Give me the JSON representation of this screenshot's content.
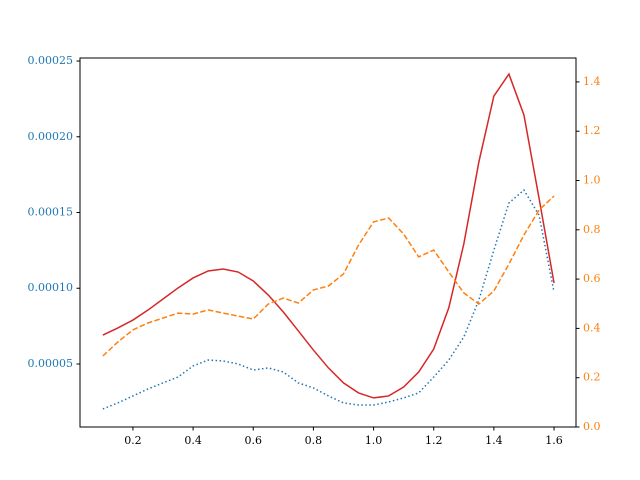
{
  "chart_data": {
    "type": "line",
    "x": [
      0.1,
      0.15,
      0.2,
      0.25,
      0.3,
      0.35,
      0.4,
      0.45,
      0.5,
      0.55,
      0.6,
      0.65,
      0.7,
      0.75,
      0.8,
      0.85,
      0.9,
      0.95,
      1.0,
      1.05,
      1.1,
      1.15,
      1.2,
      1.25,
      1.3,
      1.35,
      1.4,
      1.45,
      1.5,
      1.55,
      1.6
    ],
    "series": [
      {
        "color": "#1f77b4",
        "dash": "dotted",
        "axis": "y",
        "values": [
          2.03e-05,
          2.43e-05,
          2.89e-05,
          3.35e-05,
          3.75e-05,
          4.14e-05,
          4.87e-05,
          5.26e-05,
          5.2e-05,
          5e-05,
          4.6e-05,
          4.74e-05,
          4.47e-05,
          3.75e-05,
          3.42e-05,
          2.89e-05,
          2.43e-05,
          2.29e-05,
          2.29e-05,
          2.49e-05,
          2.76e-05,
          3.09e-05,
          4.14e-05,
          5.26e-05,
          6.78e-05,
          9.22e-05,
          0.0001252,
          0.0001563,
          0.0001648,
          0.0001483,
          9.75e-05
        ]
      },
      {
        "color": "#d62728",
        "dash": "solid",
        "axis": "y",
        "values": [
          6.91e-05,
          7.38e-05,
          7.9e-05,
          8.56e-05,
          9.29e-05,
          0.0001002,
          0.0001068,
          0.0001114,
          0.0001127,
          0.0001107,
          0.0001048,
          9.55e-05,
          8.43e-05,
          7.18e-05,
          5.92e-05,
          4.74e-05,
          3.75e-05,
          3.09e-05,
          2.76e-05,
          2.89e-05,
          3.48e-05,
          4.47e-05,
          5.99e-05,
          8.7e-05,
          0.0001292,
          0.0001833,
          0.0002269,
          0.0002414,
          0.0002143,
          0.0001596,
          0.0001035
        ]
      },
      {
        "color": "#ff7f0e",
        "dash": "dashed",
        "axis": "y2",
        "values": [
          0.288,
          0.345,
          0.394,
          0.422,
          0.442,
          0.462,
          0.458,
          0.475,
          0.462,
          0.45,
          0.438,
          0.499,
          0.523,
          0.503,
          0.556,
          0.572,
          0.621,
          0.738,
          0.832,
          0.848,
          0.783,
          0.69,
          0.718,
          0.629,
          0.544,
          0.499,
          0.552,
          0.661,
          0.779,
          0.88,
          0.937
        ]
      }
    ],
    "xlim": [
      0.024,
      1.673
    ],
    "xticks": [
      0.2,
      0.4,
      0.6,
      0.8,
      {
        "value": 1.0,
        "label": "1.0"
      },
      1.2,
      1.4,
      1.6
    ],
    "ylim": [
      8.4e-06,
      0.000252
    ],
    "yticks": [
      {
        "value": 5e-05,
        "label": "0.00005"
      },
      {
        "value": 0.0001,
        "label": "0.00010"
      },
      {
        "value": 0.00015,
        "label": "0.00015"
      },
      {
        "value": 0.0002,
        "label": "0.00020"
      },
      {
        "value": 0.00025,
        "label": "0.00025"
      }
    ],
    "y_color": "#1f77b4",
    "y2lim": [
      0,
      1.497
    ],
    "y2ticks": [
      {
        "value": 0,
        "label": "0.0"
      },
      0.2,
      0.4,
      0.6,
      0.8,
      {
        "value": 1.0,
        "label": "1.0"
      },
      1.2,
      1.4
    ],
    "y2_color": "#ff7f0e",
    "grid": false
  }
}
